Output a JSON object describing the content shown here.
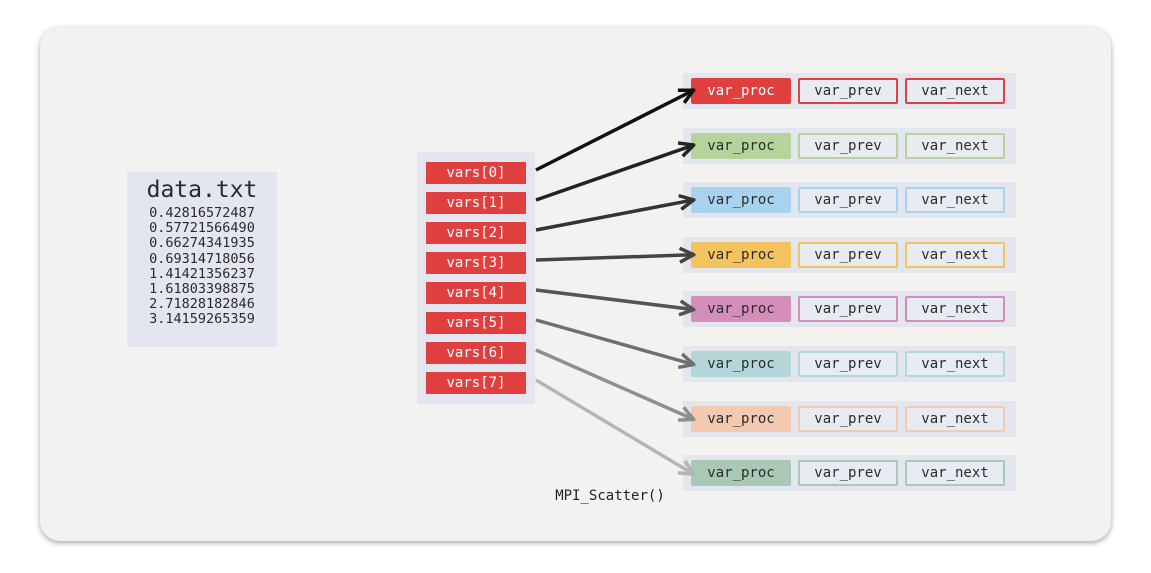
{
  "file": {
    "title": "data.txt",
    "lines": [
      "0.42816572487",
      "0.57721566490",
      "0.66274341935",
      "0.69314718056",
      "1.41421356237",
      "1.61803398875",
      "2.71828182846",
      "3.14159265359"
    ]
  },
  "vars": [
    "vars[0]",
    "vars[1]",
    "vars[2]",
    "vars[3]",
    "vars[4]",
    "vars[5]",
    "vars[6]",
    "vars[7]"
  ],
  "cell_labels": {
    "proc": "var_proc",
    "prev": "var_prev",
    "next": "var_next"
  },
  "process_colors": [
    "#e03f3f",
    "#b5d39b",
    "#a8d3ee",
    "#f2c35f",
    "#d38fba",
    "#b4d6d9",
    "#f3c9b0",
    "#a9c8b5"
  ],
  "arrow_colors": [
    "#111111",
    "#222222",
    "#333333",
    "#444444",
    "#555555",
    "#6f6f6f",
    "#8f8f8f",
    "#b5b5b5"
  ],
  "operation_label": "MPI_Scatter()"
}
